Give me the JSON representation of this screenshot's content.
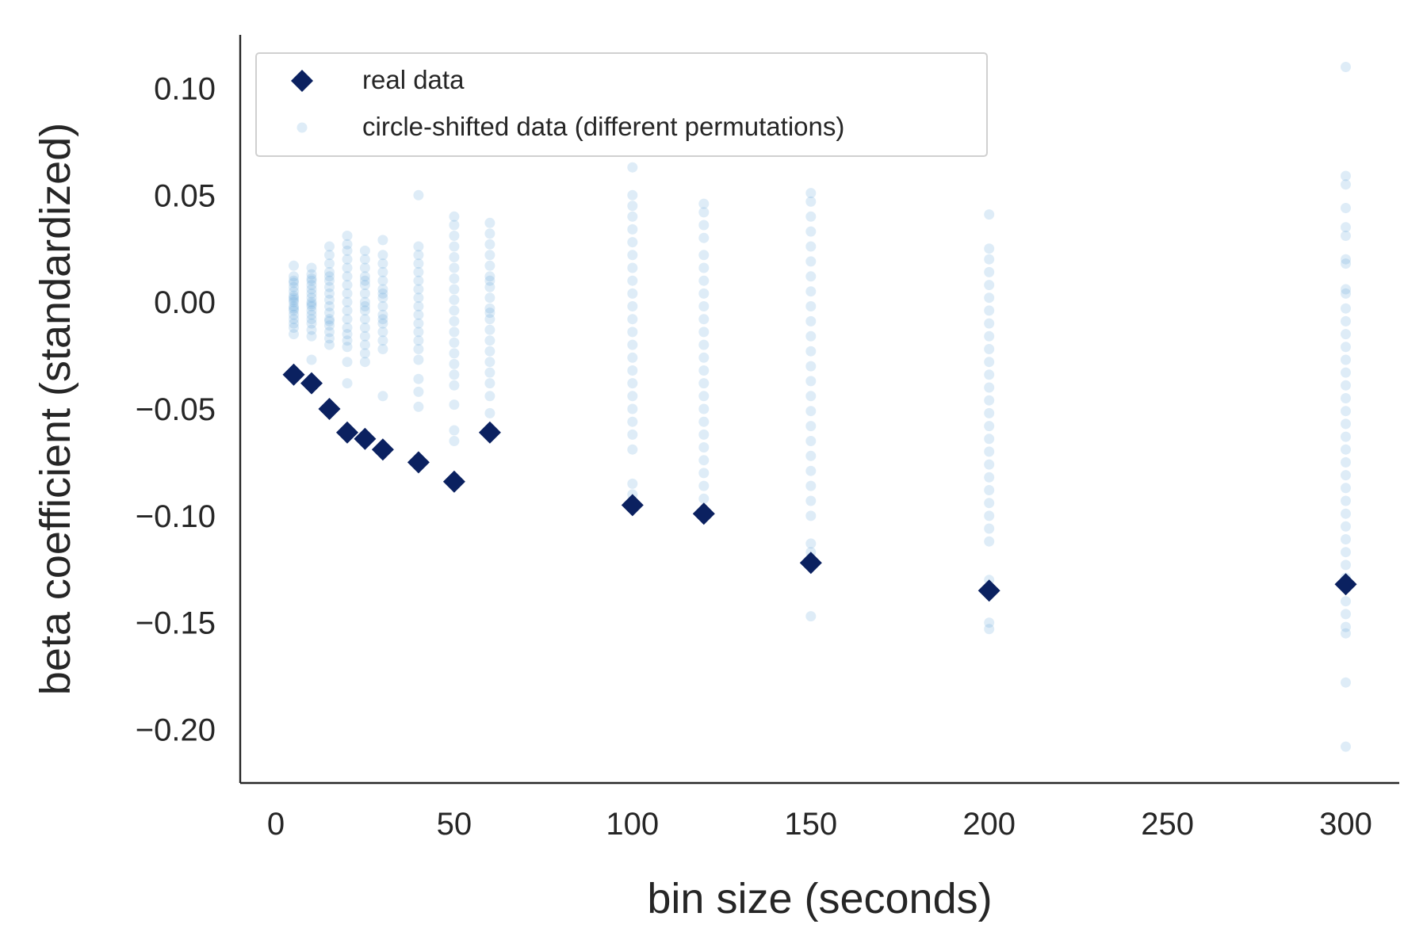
{
  "chart_data": {
    "type": "scatter",
    "title": "",
    "xlabel": "bin size (seconds)",
    "ylabel": "beta coefficient (standardized)",
    "xlim": [
      -10,
      315
    ],
    "ylim": [
      -0.225,
      0.125
    ],
    "xticks": [
      0,
      50,
      100,
      150,
      200,
      250,
      300
    ],
    "xtick_labels": [
      "0",
      "50",
      "100",
      "150",
      "200",
      "250",
      "300"
    ],
    "yticks": [
      0.1,
      0.05,
      0.0,
      -0.05,
      -0.1,
      -0.15,
      -0.2
    ],
    "ytick_labels": [
      "0.10",
      "0.05",
      "0.00",
      "−0.05",
      "−0.10",
      "−0.15",
      "−0.20"
    ],
    "grid": false,
    "legend_position": "top-left",
    "series": [
      {
        "name": "real data",
        "marker": "diamond",
        "color": "#0b2160",
        "points": [
          {
            "x": 5,
            "y": -0.034
          },
          {
            "x": 10,
            "y": -0.038
          },
          {
            "x": 15,
            "y": -0.05
          },
          {
            "x": 20,
            "y": -0.061
          },
          {
            "x": 25,
            "y": -0.064
          },
          {
            "x": 30,
            "y": -0.069
          },
          {
            "x": 40,
            "y": -0.075
          },
          {
            "x": 50,
            "y": -0.084
          },
          {
            "x": 60,
            "y": -0.061
          },
          {
            "x": 100,
            "y": -0.095
          },
          {
            "x": 120,
            "y": -0.099
          },
          {
            "x": 150,
            "y": -0.122
          },
          {
            "x": 200,
            "y": -0.135
          },
          {
            "x": 300,
            "y": -0.132
          }
        ]
      },
      {
        "name": "circle-shifted data (different permutations)",
        "marker": "circle",
        "color": "#5b9fd6",
        "opacity": 0.2,
        "columns": [
          {
            "x": 5,
            "y": [
              0.017,
              0.012,
              0.009,
              0.007,
              0.005,
              0.003,
              0.002,
              0.0,
              -0.002,
              -0.004,
              -0.006,
              -0.008,
              -0.01,
              -0.012,
              -0.015,
              0.01,
              -0.003,
              0.001
            ]
          },
          {
            "x": 10,
            "y": [
              0.016,
              0.013,
              0.01,
              0.008,
              0.006,
              0.004,
              0.002,
              0.0,
              -0.002,
              -0.004,
              -0.006,
              -0.008,
              -0.01,
              -0.013,
              -0.016,
              -0.027,
              0.011,
              -0.001
            ]
          },
          {
            "x": 15,
            "y": [
              0.026,
              0.022,
              0.018,
              0.014,
              0.01,
              0.007,
              0.004,
              0.001,
              -0.002,
              -0.005,
              -0.008,
              -0.011,
              -0.014,
              -0.017,
              -0.02,
              0.012,
              -0.009
            ]
          },
          {
            "x": 20,
            "y": [
              0.031,
              0.027,
              0.024,
              0.02,
              0.016,
              0.012,
              0.008,
              0.004,
              0.0,
              -0.004,
              -0.008,
              -0.012,
              -0.015,
              -0.018,
              -0.021,
              -0.028,
              -0.038
            ]
          },
          {
            "x": 25,
            "y": [
              0.024,
              0.02,
              0.016,
              0.012,
              0.008,
              0.004,
              0.0,
              -0.004,
              -0.008,
              -0.012,
              -0.016,
              -0.02,
              -0.024,
              -0.028,
              0.01,
              -0.002
            ]
          },
          {
            "x": 30,
            "y": [
              0.029,
              0.022,
              0.018,
              0.014,
              0.01,
              0.006,
              0.002,
              -0.002,
              -0.006,
              -0.01,
              -0.014,
              -0.018,
              -0.022,
              -0.044,
              0.004,
              -0.008
            ]
          },
          {
            "x": 40,
            "y": [
              0.05,
              0.026,
              0.022,
              0.018,
              0.014,
              0.01,
              0.006,
              0.002,
              -0.002,
              -0.006,
              -0.01,
              -0.014,
              -0.018,
              -0.022,
              -0.027,
              -0.036,
              -0.042,
              -0.049
            ]
          },
          {
            "x": 50,
            "y": [
              0.04,
              0.036,
              0.031,
              0.026,
              0.021,
              0.016,
              0.011,
              0.006,
              0.001,
              -0.004,
              -0.009,
              -0.014,
              -0.019,
              -0.024,
              -0.029,
              -0.034,
              -0.039,
              -0.048,
              -0.06,
              -0.065
            ]
          },
          {
            "x": 60,
            "y": [
              0.037,
              0.032,
              0.027,
              0.022,
              0.017,
              0.012,
              0.007,
              0.002,
              -0.003,
              -0.008,
              -0.013,
              -0.018,
              -0.023,
              -0.028,
              -0.033,
              -0.038,
              -0.044,
              -0.052,
              0.01,
              -0.005
            ]
          },
          {
            "x": 100,
            "y": [
              0.063,
              0.05,
              0.045,
              0.04,
              0.034,
              0.028,
              0.022,
              0.016,
              0.01,
              0.004,
              -0.002,
              -0.008,
              -0.014,
              -0.02,
              -0.026,
              -0.032,
              -0.038,
              -0.044,
              -0.05,
              -0.056,
              -0.062,
              -0.069,
              -0.085,
              -0.09
            ]
          },
          {
            "x": 120,
            "y": [
              0.046,
              0.042,
              0.036,
              0.03,
              0.022,
              0.016,
              0.01,
              0.004,
              -0.002,
              -0.008,
              -0.014,
              -0.02,
              -0.026,
              -0.032,
              -0.038,
              -0.044,
              -0.05,
              -0.056,
              -0.062,
              -0.068,
              -0.074,
              -0.08,
              -0.086,
              -0.092
            ]
          },
          {
            "x": 150,
            "y": [
              0.051,
              0.047,
              0.04,
              0.033,
              0.026,
              0.019,
              0.012,
              0.005,
              -0.002,
              -0.009,
              -0.016,
              -0.023,
              -0.03,
              -0.037,
              -0.044,
              -0.051,
              -0.058,
              -0.065,
              -0.072,
              -0.079,
              -0.086,
              -0.093,
              -0.1,
              -0.113,
              -0.117,
              -0.147
            ]
          },
          {
            "x": 200,
            "y": [
              0.041,
              0.025,
              0.02,
              0.014,
              0.008,
              0.002,
              -0.004,
              -0.01,
              -0.016,
              -0.022,
              -0.028,
              -0.034,
              -0.04,
              -0.046,
              -0.052,
              -0.058,
              -0.064,
              -0.07,
              -0.076,
              -0.082,
              -0.088,
              -0.094,
              -0.1,
              -0.106,
              -0.112,
              -0.13,
              -0.15,
              -0.153
            ]
          },
          {
            "x": 300,
            "y": [
              0.11,
              0.059,
              0.055,
              0.044,
              0.035,
              0.031,
              0.02,
              0.018,
              0.006,
              0.004,
              -0.003,
              -0.009,
              -0.015,
              -0.021,
              -0.027,
              -0.033,
              -0.039,
              -0.045,
              -0.051,
              -0.057,
              -0.063,
              -0.069,
              -0.075,
              -0.081,
              -0.087,
              -0.093,
              -0.099,
              -0.105,
              -0.111,
              -0.117,
              -0.123,
              -0.129,
              -0.14,
              -0.146,
              -0.152,
              -0.155,
              -0.178,
              -0.208
            ]
          }
        ]
      }
    ]
  }
}
